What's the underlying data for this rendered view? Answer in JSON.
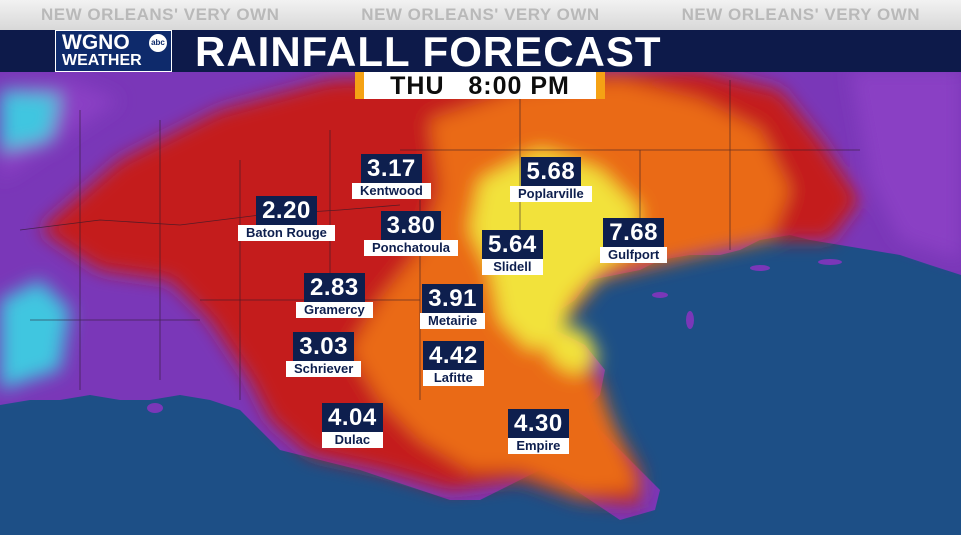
{
  "header": {
    "tagline": [
      "NEW ORLEANS' VERY OWN",
      "NEW ORLEANS' VERY OWN",
      "NEW ORLEANS' VERY OWN"
    ],
    "logo_line1": "WGNO",
    "logo_badge": "abc",
    "logo_line2": "WEATHER",
    "title": "RAINFALL FORECAST",
    "time": "THU   8:00 PM"
  },
  "cities": [
    {
      "name": "Kentwood",
      "value": "3.17"
    },
    {
      "name": "Poplarville",
      "value": "5.68"
    },
    {
      "name": "Baton Rouge",
      "value": "2.20"
    },
    {
      "name": "Ponchatoula",
      "value": "3.80"
    },
    {
      "name": "Slidell",
      "value": "5.64"
    },
    {
      "name": "Gulfport",
      "value": "7.68"
    },
    {
      "name": "Gramercy",
      "value": "2.83"
    },
    {
      "name": "Metairie",
      "value": "3.91"
    },
    {
      "name": "Schriever",
      "value": "3.03"
    },
    {
      "name": "Lafitte",
      "value": "4.42"
    },
    {
      "name": "Dulac",
      "value": "4.04"
    },
    {
      "name": "Empire",
      "value": "4.30"
    }
  ],
  "colors": {
    "water": "#1d4f86",
    "rain_light": "#8a3fc4",
    "rain_moderate": "#c41a1a",
    "rain_heavy": "#ea6a14",
    "rain_extreme": "#f2e23a",
    "label_bg": "#0e1f4e"
  }
}
